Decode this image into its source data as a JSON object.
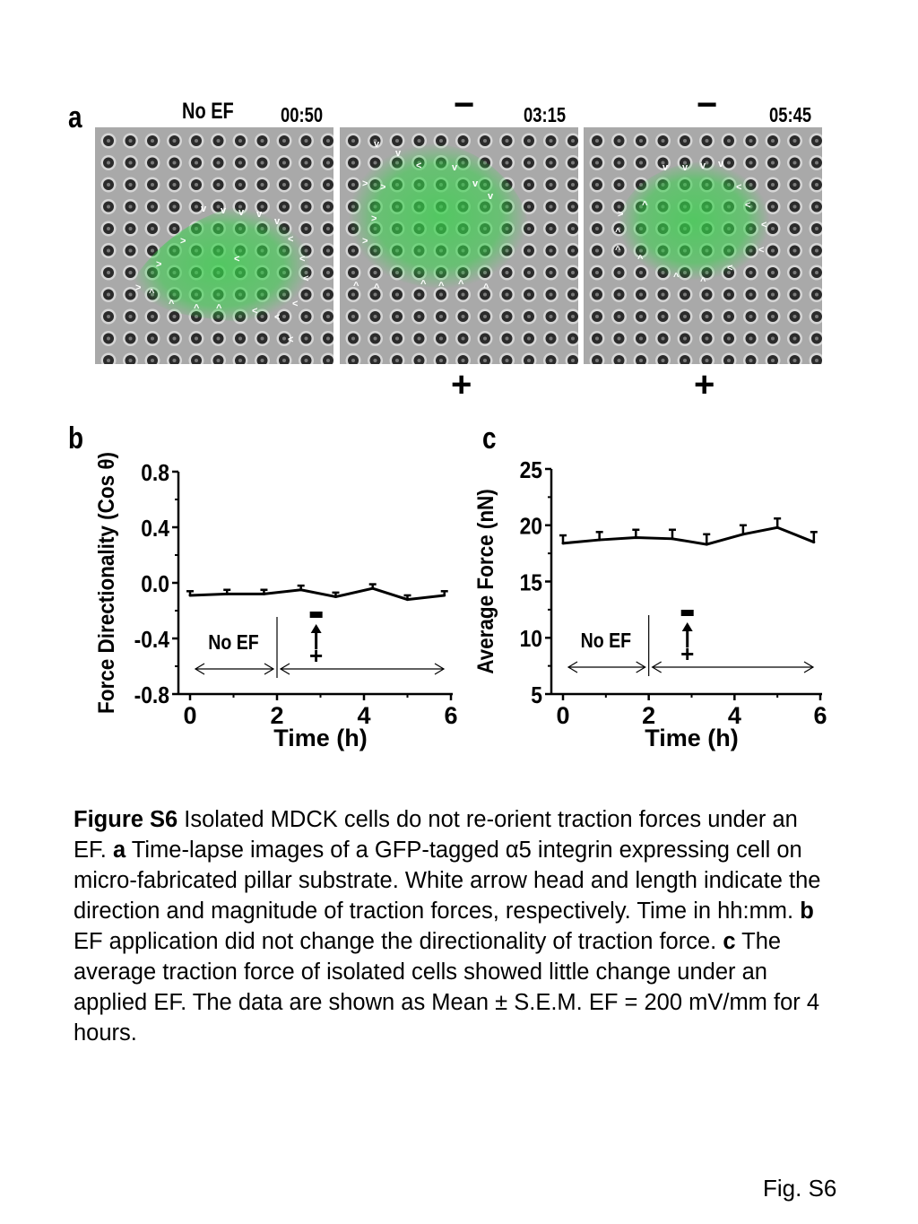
{
  "panel_a": {
    "letter": "a",
    "frames": [
      {
        "condition": "No EF",
        "time": "00:50",
        "top_sign": "",
        "bottom_sign": ""
      },
      {
        "condition": "",
        "time": "03:15",
        "top_sign": "−",
        "bottom_sign": "+"
      },
      {
        "condition": "",
        "time": "05:45",
        "top_sign": "−",
        "bottom_sign": "+"
      }
    ]
  },
  "chart_data": [
    {
      "panel": "b",
      "type": "line",
      "xlabel": "Time (h)",
      "ylabel": "Force Directionality (Cos θ)",
      "xlim": [
        0,
        6
      ],
      "ylim": [
        -0.8,
        0.8
      ],
      "x_ticks": [
        "0",
        "2",
        "4",
        "6"
      ],
      "y_ticks": [
        "0.8",
        "0.4",
        "0.0",
        "-0.4",
        "-0.8"
      ],
      "x": [
        0,
        0.85,
        1.7,
        2.55,
        3.35,
        4.2,
        5.0,
        5.85
      ],
      "y": [
        -0.09,
        -0.08,
        -0.08,
        -0.05,
        -0.1,
        -0.04,
        -0.12,
        -0.09
      ],
      "error": [
        0.03,
        0.03,
        0.03,
        0.03,
        0.03,
        0.03,
        0.03,
        0.03
      ],
      "annotation_no_ef": "No EF",
      "annotation_split_x": 2,
      "ef_arrow_top": "−",
      "ef_arrow_bottom": "+"
    },
    {
      "panel": "c",
      "type": "line",
      "xlabel": "Time (h)",
      "ylabel": "Average Force (nN)",
      "xlim": [
        0,
        6
      ],
      "ylim": [
        5,
        25
      ],
      "x_ticks": [
        "0",
        "2",
        "4",
        "6"
      ],
      "y_ticks": [
        "25",
        "20",
        "15",
        "10",
        "5"
      ],
      "x": [
        0,
        0.85,
        1.7,
        2.55,
        3.35,
        4.2,
        5.0,
        5.85
      ],
      "y": [
        18.4,
        18.7,
        18.9,
        18.8,
        18.3,
        19.2,
        19.8,
        18.5
      ],
      "error": [
        0.7,
        0.7,
        0.7,
        0.8,
        0.9,
        0.8,
        0.8,
        0.9
      ],
      "annotation_no_ef": "No EF",
      "annotation_split_x": 2,
      "ef_arrow_top": "−",
      "ef_arrow_bottom": "+"
    }
  ],
  "caption": {
    "figure_label": "Figure S6",
    "sentence1": " Isolated MDCK cells do not re-orient traction forces under an EF. ",
    "label_a": "a",
    "text_a": " Time-lapse images of a GFP-tagged α5 integrin expressing cell on micro-fabricated pillar substrate. White arrow head and length indicate the direction and magnitude of traction forces, respectively. Time in hh:mm. ",
    "label_b": "b",
    "text_b": " EF application did not change the directionality of traction force. ",
    "label_c": "c",
    "text_c": " The average traction force of isolated cells showed little change under an applied EF. The data are shown as Mean ± S.E.M. EF = 200 mV/mm for 4 hours."
  },
  "figure_footer": "Fig. S6",
  "colors": {
    "gfp_green": "#36d14a",
    "pillar_bg": "#a9a9a9",
    "pillar_dark": "#2b2b2b"
  }
}
